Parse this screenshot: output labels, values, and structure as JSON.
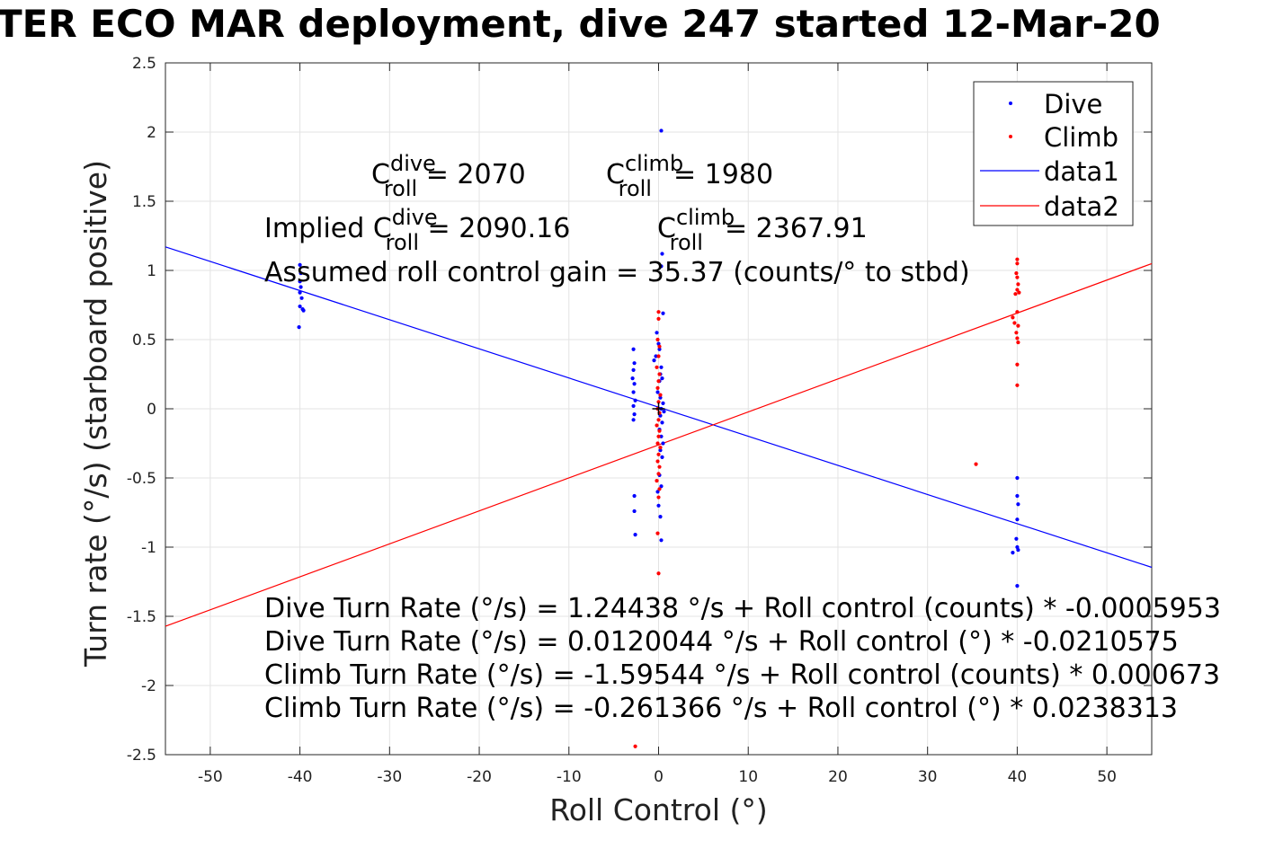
{
  "chart_data": {
    "type": "scatter",
    "title": "TER ECO MAR deployment, dive 247 started 12-Mar-20",
    "xlabel": "Roll Control (°)",
    "ylabel": "Turn rate (°/s) (starboard positive)",
    "xlim": [
      -55,
      55
    ],
    "ylim": [
      -2.5,
      2.5
    ],
    "xticks": [
      -50,
      -40,
      -30,
      -20,
      -10,
      0,
      10,
      20,
      30,
      40,
      50
    ],
    "yticks": [
      -2.5,
      -2,
      -1.5,
      -1,
      -0.5,
      0,
      0.5,
      1,
      1.5,
      2,
      2.5
    ],
    "grid": true,
    "legend_position": "top-right",
    "legend": [
      "Dive",
      "Climb",
      "data1",
      "data2"
    ],
    "series": [
      {
        "name": "Dive",
        "kind": "points",
        "color": "#0000ff",
        "points": [
          [
            -40,
            1.04
          ],
          [
            -39.9,
            0.98
          ],
          [
            -40,
            0.92
          ],
          [
            -39.9,
            0.88
          ],
          [
            -40,
            0.84
          ],
          [
            -39.8,
            0.8
          ],
          [
            -40,
            0.74
          ],
          [
            -39.7,
            0.72
          ],
          [
            -39.6,
            0.71
          ],
          [
            -40.1,
            0.59
          ],
          [
            -2.8,
            0.43
          ],
          [
            -2.7,
            0.33
          ],
          [
            -2.8,
            0.28
          ],
          [
            -2.9,
            0.22
          ],
          [
            -2.7,
            0.18
          ],
          [
            -2.8,
            0.12
          ],
          [
            -2.6,
            0.06
          ],
          [
            -2.8,
            0.02
          ],
          [
            -2.7,
            -0.04
          ],
          [
            -2.8,
            -0.08
          ],
          [
            -2.7,
            -0.63
          ],
          [
            -2.7,
            -0.74
          ],
          [
            -2.6,
            -0.91
          ],
          [
            -0.5,
            0.35
          ],
          [
            -0.3,
            0.38
          ],
          [
            -0.2,
            0.55
          ],
          [
            0,
            0.47
          ],
          [
            0.1,
            0.43
          ],
          [
            0.3,
            0.3
          ],
          [
            0.2,
            0.25
          ],
          [
            0.4,
            0.22
          ],
          [
            0.1,
            0.2
          ],
          [
            -0.1,
            0.12
          ],
          [
            0.2,
            0.08
          ],
          [
            0.5,
            0.04
          ],
          [
            0.3,
            0.0
          ],
          [
            0.6,
            -0.02
          ],
          [
            0.2,
            -0.05
          ],
          [
            0.4,
            -0.1
          ],
          [
            0.1,
            -0.15
          ],
          [
            0.3,
            -0.2
          ],
          [
            0.5,
            -0.25
          ],
          [
            0.2,
            -0.3
          ],
          [
            0.4,
            -0.35
          ],
          [
            0.1,
            -0.48
          ],
          [
            0.3,
            -0.56
          ],
          [
            -0.1,
            -0.6
          ],
          [
            0,
            -0.7
          ],
          [
            0.2,
            -0.78
          ],
          [
            0.3,
            -0.95
          ],
          [
            0.4,
            1.12
          ],
          [
            0.3,
            1.03
          ],
          [
            0.5,
            0.69
          ],
          [
            0.3,
            2.01
          ],
          [
            40,
            -0.5
          ],
          [
            40,
            -0.63
          ],
          [
            40.1,
            -0.69
          ],
          [
            40,
            -0.8
          ],
          [
            39.9,
            -0.94
          ],
          [
            40,
            -1.0
          ],
          [
            40.1,
            -1.02
          ],
          [
            39.5,
            -1.04
          ],
          [
            40,
            -1.28
          ]
        ]
      },
      {
        "name": "Climb",
        "kind": "points",
        "color": "#ff0000",
        "points": [
          [
            40,
            1.08
          ],
          [
            40,
            1.05
          ],
          [
            39.9,
            0.98
          ],
          [
            40,
            0.95
          ],
          [
            40.1,
            0.9
          ],
          [
            40,
            0.86
          ],
          [
            40.2,
            0.84
          ],
          [
            39.8,
            0.83
          ],
          [
            40,
            0.7
          ],
          [
            39.5,
            0.66
          ],
          [
            39.7,
            0.62
          ],
          [
            40.1,
            0.6
          ],
          [
            39.9,
            0.55
          ],
          [
            40,
            0.51
          ],
          [
            40.1,
            0.48
          ],
          [
            40,
            0.32
          ],
          [
            40,
            0.17
          ],
          [
            35.4,
            -0.4
          ],
          [
            0,
            0.7
          ],
          [
            0,
            0.65
          ],
          [
            -0.1,
            0.5
          ],
          [
            0.1,
            0.45
          ],
          [
            0,
            0.38
          ],
          [
            -0.2,
            0.3
          ],
          [
            0.1,
            0.25
          ],
          [
            0,
            0.2
          ],
          [
            -0.1,
            0.15
          ],
          [
            0.2,
            0.1
          ],
          [
            0,
            0.05
          ],
          [
            -0.1,
            0.0
          ],
          [
            0.1,
            -0.03
          ],
          [
            0,
            -0.08
          ],
          [
            -0.2,
            -0.12
          ],
          [
            0.1,
            -0.16
          ],
          [
            0,
            -0.2
          ],
          [
            -0.1,
            -0.25
          ],
          [
            0.2,
            -0.28
          ],
          [
            0,
            -0.33
          ],
          [
            -0.1,
            -0.38
          ],
          [
            0.1,
            -0.42
          ],
          [
            0,
            -0.47
          ],
          [
            -0.2,
            -0.52
          ],
          [
            0.1,
            -0.58
          ],
          [
            0,
            -0.64
          ],
          [
            -0.1,
            -0.9
          ],
          [
            0,
            -1.19
          ],
          [
            -2.6,
            -2.44
          ]
        ]
      },
      {
        "name": "data1",
        "kind": "line",
        "color": "#0000ff",
        "x": [
          -55,
          55
        ],
        "y": [
          1.1701,
          -1.1461
        ]
      },
      {
        "name": "data2",
        "kind": "line",
        "color": "#ff0000",
        "x": [
          -55,
          55
        ],
        "y": [
          -1.5721,
          1.0494
        ]
      }
    ],
    "annotations": {
      "c_dive": {
        "prefix": "C",
        "sup": "dive",
        "sub": "roll",
        "suffix": " = 2070"
      },
      "c_climb": {
        "prefix": "C",
        "sup": "climb",
        "sub": "roll",
        "suffix": " = 1980"
      },
      "implied_dive": {
        "prefix": "Implied C",
        "sup": "dive",
        "sub": "roll",
        "suffix": " = 2090.16"
      },
      "implied_climb": {
        "prefix": "C",
        "sup": "climb",
        "sub": "roll",
        "suffix": " = 2367.91"
      },
      "gain": "Assumed roll control gain = 35.37 (counts/° to stbd)",
      "eq1": "Dive Turn Rate (°/s) = 1.24438 °/s + Roll control (counts) * -0.0005953",
      "eq2": "Dive Turn Rate (°/s) = 0.0120044 °/s + Roll control (°) * -0.0210575",
      "eq3": "Climb Turn Rate (°/s) = -1.59544 °/s + Roll control (counts) * 0.000673",
      "eq4": "Climb Turn Rate (°/s) = -0.261366 °/s + Roll control (°) * 0.0238313"
    }
  }
}
